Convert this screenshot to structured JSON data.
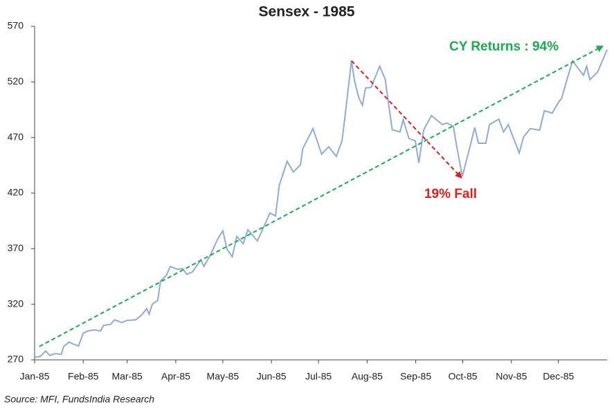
{
  "chart_data": {
    "type": "line",
    "title": "Sensex - 1985",
    "source": "Source: MFI, FundsIndia Research",
    "color": "#8faadc",
    "x": [
      0,
      3.5,
      7,
      9.7,
      13,
      17,
      18.5,
      22,
      25,
      28,
      31,
      34,
      38,
      42,
      44,
      48.5,
      51,
      55.6,
      59,
      64.4,
      68,
      71.5,
      73,
      75,
      78.5,
      80.3,
      84,
      86.5,
      91,
      94.4,
      97,
      100.6,
      103,
      106,
      107.9,
      112,
      116.5,
      120,
      122.7,
      126,
      128.9,
      133,
      136,
      142,
      145.6,
      150,
      153.6,
      156,
      161,
      165,
      169.5,
      171,
      177.5,
      183,
      187.5,
      192.4,
      196,
      198.6,
      202,
      204,
      206.6,
      209,
      211,
      214.5,
      220,
      223.5,
      228,
      233,
      235,
      238.7,
      242.7,
      245,
      248,
      253,
      260,
      263,
      267,
      269,
      272.7,
      278,
      280.6,
      283,
      287.7,
      290,
      296,
      299,
      302,
      309,
      311.6,
      316,
      322,
      325,
      330,
      334.5,
      336,
      339,
      343,
      348,
      350,
      352,
      354,
      359,
      365
    ],
    "values": [
      272.5,
      273,
      278,
      274,
      275.6,
      275,
      282,
      286,
      284,
      282.5,
      294,
      296,
      297,
      296,
      301,
      302,
      306,
      303.6,
      305.5,
      306,
      310,
      316,
      311,
      320,
      323.5,
      341,
      346,
      354,
      351.5,
      352,
      347,
      349,
      354,
      360,
      354,
      364,
      378,
      386,
      369.5,
      362.7,
      381,
      374.5,
      387,
      377,
      388,
      402,
      399.5,
      427,
      448.6,
      439,
      445.5,
      460,
      478,
      455,
      461.6,
      453,
      467,
      497,
      539,
      521,
      506,
      499,
      514.5,
      515,
      534,
      522.6,
      477,
      475,
      486,
      469,
      467,
      447,
      476.6,
      489.7,
      481.6,
      483,
      480,
      463,
      435,
      464,
      479,
      464.8,
      464.8,
      481.6,
      486.5,
      475,
      481.6,
      456,
      470,
      478,
      476.6,
      494,
      492,
      502.7,
      505,
      520,
      539,
      529.5,
      526,
      534,
      522,
      529,
      549
    ],
    "xlim": [
      0,
      365
    ],
    "xticks": [
      {
        "value": 0,
        "label": "Jan-85"
      },
      {
        "value": 31,
        "label": "Feb-85"
      },
      {
        "value": 59,
        "label": "Mar-85"
      },
      {
        "value": 90,
        "label": "Apr-85"
      },
      {
        "value": 120,
        "label": "May-85"
      },
      {
        "value": 151,
        "label": "Jun-85"
      },
      {
        "value": 181,
        "label": "Jul-85"
      },
      {
        "value": 212,
        "label": "Aug-85"
      },
      {
        "value": 243,
        "label": "Sep-85"
      },
      {
        "value": 273,
        "label": "Oct-85"
      },
      {
        "value": 304,
        "label": "Nov-85"
      },
      {
        "value": 334,
        "label": "Dec-85"
      }
    ],
    "ylim": [
      270,
      570
    ],
    "yticks": [
      270,
      320,
      370,
      420,
      470,
      520,
      570
    ],
    "trend_lines": [
      {
        "label": "CY Returns : 94%",
        "color": "#1aab4f",
        "x": [
          3,
          362
        ],
        "y": [
          282,
          552
        ]
      },
      {
        "label": "19% Fall",
        "color": "#e01e1e",
        "x": [
          202,
          272
        ],
        "y": [
          539,
          434
        ]
      }
    ]
  }
}
